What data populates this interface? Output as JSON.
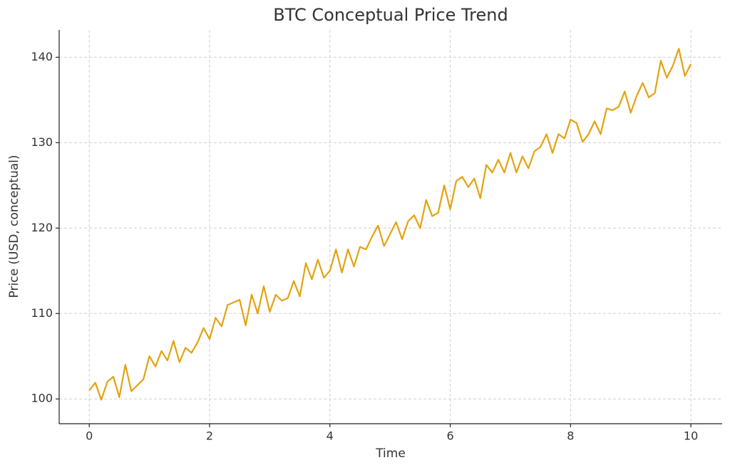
{
  "chart_data": {
    "type": "line",
    "title": "BTC Conceptual Price Trend",
    "x_label": "Time",
    "y_label": "Price (USD, conceptual)",
    "x": [
      0,
      0.1,
      0.2,
      0.3,
      0.4,
      0.5,
      0.6,
      0.7,
      0.8,
      0.9,
      1,
      1.1,
      1.2,
      1.3,
      1.4,
      1.5,
      1.6,
      1.7,
      1.8,
      1.9,
      2,
      2.1,
      2.2,
      2.3,
      2.4,
      2.5,
      2.6,
      2.7,
      2.8,
      2.9,
      3,
      3.1,
      3.2,
      3.3,
      3.4,
      3.5,
      3.6,
      3.7,
      3.8,
      3.9,
      4,
      4.1,
      4.2,
      4.3,
      4.4,
      4.5,
      4.6,
      4.7,
      4.8,
      4.9,
      5,
      5.1,
      5.2,
      5.3,
      5.4,
      5.5,
      5.6,
      5.7,
      5.8,
      5.9,
      6,
      6.1,
      6.2,
      6.3,
      6.4,
      6.5,
      6.6,
      6.7,
      6.8,
      6.9,
      7,
      7.1,
      7.2,
      7.3,
      7.4,
      7.5,
      7.6,
      7.7,
      7.8,
      7.9,
      8,
      8.1,
      8.2,
      8.3,
      8.4,
      8.5,
      8.6,
      8.7,
      8.8,
      8.9,
      9,
      9.1,
      9.2,
      9.3,
      9.4,
      9.5,
      9.6,
      9.7,
      9.8,
      9.9,
      10
    ],
    "series": [
      {
        "name": "BTC",
        "color": "#e3a20f",
        "values": [
          101.0,
          101.9,
          99.9,
          102.0,
          102.6,
          100.2,
          104.0,
          100.9,
          101.6,
          102.3,
          105.0,
          103.8,
          105.6,
          104.5,
          106.8,
          104.3,
          106.0,
          105.4,
          106.6,
          108.3,
          107.0,
          109.5,
          108.5,
          111.0,
          111.3,
          111.6,
          108.6,
          112.2,
          110.0,
          113.2,
          110.2,
          112.2,
          111.5,
          111.8,
          113.8,
          112.0,
          115.9,
          114.0,
          116.3,
          114.2,
          115.0,
          117.5,
          114.8,
          117.5,
          115.5,
          117.8,
          117.5,
          119.0,
          120.3,
          117.9,
          119.3,
          120.7,
          118.7,
          120.8,
          121.5,
          120.0,
          123.3,
          121.4,
          121.8,
          125.0,
          122.2,
          125.5,
          126.0,
          124.8,
          125.8,
          123.5,
          127.4,
          126.5,
          128.0,
          126.5,
          128.8,
          126.5,
          128.4,
          127.0,
          129.0,
          129.5,
          131.0,
          128.8,
          131.0,
          130.5,
          132.7,
          132.3,
          130.1,
          131.0,
          132.5,
          131.0,
          134.0,
          133.8,
          134.2,
          136.0,
          133.5,
          135.5,
          137.0,
          135.3,
          135.8,
          139.6,
          137.6,
          139.0,
          141.0,
          137.8,
          139.2
        ]
      }
    ],
    "xlim": [
      -0.5,
      10.52
    ],
    "ylim": [
      97.1,
      143.2
    ],
    "xticks": [
      0,
      2,
      4,
      6,
      8,
      10
    ],
    "yticks": [
      100,
      110,
      120,
      130,
      140
    ],
    "grid": true
  }
}
